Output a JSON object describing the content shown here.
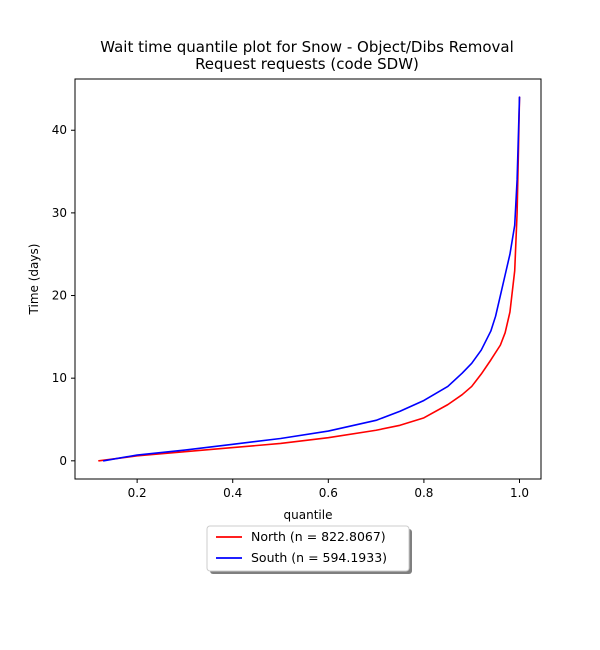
{
  "chart_data": {
    "type": "line",
    "title_lines": [
      "Wait time quantile plot for Snow - Object/Dibs Removal",
      "Request  requests (code SDW)"
    ],
    "xlabel": "quantile",
    "ylabel": "Time (days)",
    "xlim": [
      0.07,
      1.045
    ],
    "ylim": [
      -2.2,
      46.2
    ],
    "xticks": [
      0.2,
      0.4,
      0.6,
      0.8,
      1.0
    ],
    "xtick_labels": [
      "0.2",
      "0.4",
      "0.6",
      "0.8",
      "1.0"
    ],
    "yticks": [
      0,
      10,
      20,
      30,
      40
    ],
    "ytick_labels": [
      "0",
      "10",
      "20",
      "30",
      "40"
    ],
    "grid": false,
    "legend_position": "below",
    "series": [
      {
        "name": "North (n = 822.8067)",
        "color": "#ff0000",
        "x": [
          0.12,
          0.2,
          0.3,
          0.4,
          0.5,
          0.6,
          0.7,
          0.75,
          0.8,
          0.85,
          0.88,
          0.9,
          0.92,
          0.94,
          0.96,
          0.97,
          0.98,
          0.99,
          0.995,
          0.998,
          1.0
        ],
        "y": [
          0,
          0.6,
          1.1,
          1.6,
          2.1,
          2.8,
          3.7,
          4.3,
          5.2,
          6.8,
          8.0,
          9.0,
          10.5,
          12.2,
          14.0,
          15.5,
          18.0,
          23.0,
          30.0,
          38.0,
          44.0
        ]
      },
      {
        "name": "South (n = 594.1933)",
        "color": "#0000ff",
        "x": [
          0.13,
          0.2,
          0.3,
          0.4,
          0.5,
          0.6,
          0.7,
          0.75,
          0.8,
          0.85,
          0.88,
          0.9,
          0.92,
          0.94,
          0.95,
          0.96,
          0.97,
          0.98,
          0.99,
          0.995,
          0.998,
          1.0
        ],
        "y": [
          0,
          0.7,
          1.3,
          2.0,
          2.7,
          3.6,
          4.9,
          6.0,
          7.3,
          9.0,
          10.6,
          11.8,
          13.4,
          15.7,
          17.5,
          20.0,
          22.5,
          25.0,
          28.5,
          34.0,
          40.0,
          44.0
        ]
      }
    ]
  }
}
